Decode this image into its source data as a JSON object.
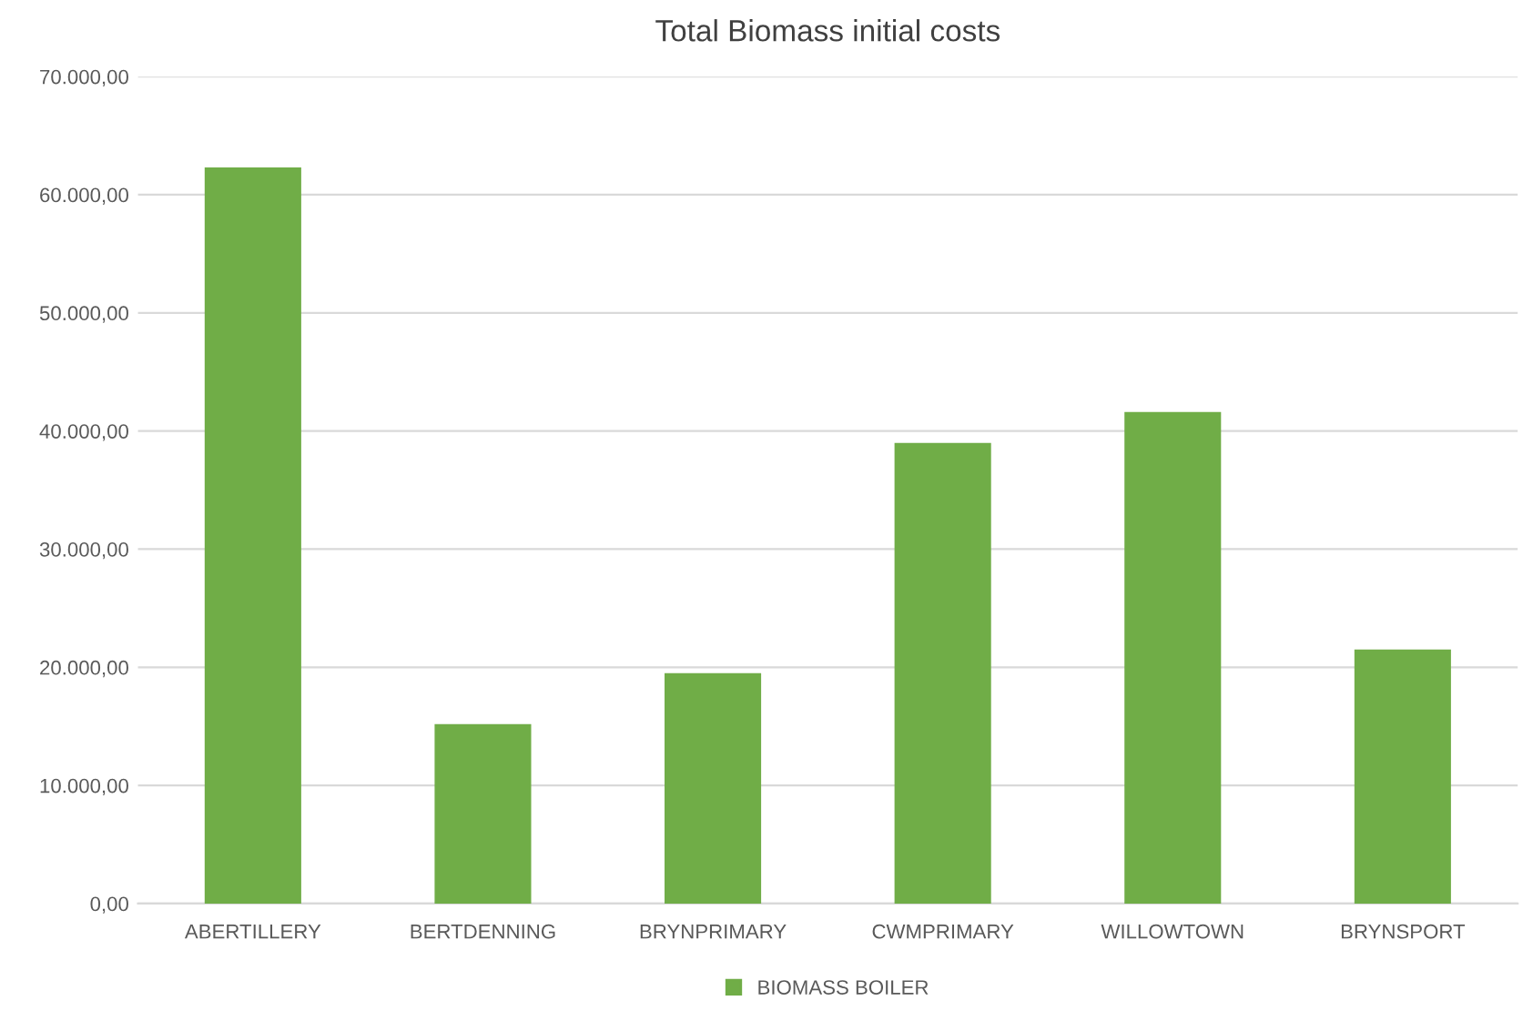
{
  "chart_data": {
    "type": "bar",
    "title": "Total Biomass initial costs",
    "categories": [
      "ABERTILLERY",
      "BERTDENNING",
      "BRYNPRIMARY",
      "CWMPRIMARY",
      "WILLOWTOWN",
      "BRYNSPORT"
    ],
    "series": [
      {
        "name": "BIOMASS BOILER",
        "color": "#70ad47",
        "values": [
          62300,
          15200,
          19500,
          39000,
          41600,
          21500
        ]
      }
    ],
    "ylim": [
      0,
      70000
    ],
    "yticks": [
      {
        "value": 0,
        "label": "0,00"
      },
      {
        "value": 10000,
        "label": "10.000,00"
      },
      {
        "value": 20000,
        "label": "20.000,00"
      },
      {
        "value": 30000,
        "label": "30.000,00"
      },
      {
        "value": 40000,
        "label": "40.000,00"
      },
      {
        "value": 50000,
        "label": "50.000,00"
      },
      {
        "value": 60000,
        "label": "60.000,00"
      },
      {
        "value": 70000,
        "label": "70.000,00"
      }
    ],
    "grid": "y",
    "legend": "bottom"
  }
}
